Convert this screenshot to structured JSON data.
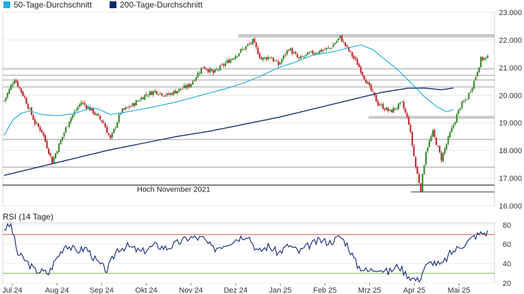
{
  "chart_data": [
    {
      "type": "candlestick",
      "legend": [
        {
          "name": "50-Tage-Durchschnitt",
          "color": "#22aee6"
        },
        {
          "name": "200-Tage-Durchschnitt",
          "color": "#102a6b"
        }
      ],
      "legend_placement": "top-left",
      "x_ticks": [
        "Jul 24",
        "Aug 24",
        "Sep 24",
        "Okt 24",
        "Nov 24",
        "Dez 24",
        "Jan 25",
        "Feb 25",
        "Mrz 25",
        "Apr 25",
        "Mai 25"
      ],
      "ylim": [
        16.0,
        23.0
      ],
      "y_ticks": [
        "16.000",
        "17.000",
        "18.000",
        "19.000",
        "20.000",
        "21.000",
        "22.000",
        "23.000"
      ],
      "y_tick_values": [
        16000,
        17000,
        18000,
        19000,
        20000,
        21000,
        22000,
        23000
      ],
      "grid": "horizontal",
      "up_color": "#3a8a2e",
      "down_color": "#c0282e",
      "annotation": {
        "text": "Hoch November 2021",
        "value": 16750
      },
      "support_lines": [
        22150,
        20950,
        20720,
        20550,
        20300,
        19200,
        18400,
        17400,
        16750
      ],
      "ma50": [
        [
          0,
          18550
        ],
        [
          5,
          19100
        ],
        [
          10,
          19350
        ],
        [
          15,
          19430
        ],
        [
          22,
          19300
        ],
        [
          32,
          19260
        ],
        [
          42,
          19350
        ],
        [
          50,
          19550
        ],
        [
          55,
          19500
        ],
        [
          62,
          19300
        ],
        [
          72,
          19400
        ],
        [
          85,
          19550
        ],
        [
          100,
          19750
        ],
        [
          115,
          20000
        ],
        [
          130,
          20250
        ],
        [
          140,
          20450
        ],
        [
          150,
          20700
        ],
        [
          160,
          21000
        ],
        [
          170,
          21200
        ],
        [
          180,
          21450
        ],
        [
          190,
          21550
        ],
        [
          200,
          21700
        ],
        [
          208,
          21820
        ],
        [
          215,
          21650
        ],
        [
          222,
          21300
        ],
        [
          230,
          20900
        ],
        [
          238,
          20400
        ],
        [
          245,
          19950
        ],
        [
          252,
          19600
        ],
        [
          258,
          19400
        ],
        [
          262,
          19480
        ]
      ],
      "ma200": [
        [
          0,
          17100
        ],
        [
          20,
          17400
        ],
        [
          40,
          17700
        ],
        [
          60,
          18000
        ],
        [
          80,
          18250
        ],
        [
          100,
          18500
        ],
        [
          120,
          18700
        ],
        [
          140,
          18950
        ],
        [
          160,
          19200
        ],
        [
          180,
          19500
        ],
        [
          200,
          19800
        ],
        [
          220,
          20100
        ],
        [
          235,
          20250
        ],
        [
          245,
          20260
        ],
        [
          255,
          20200
        ],
        [
          262,
          20260
        ]
      ],
      "price_knots": [
        [
          0,
          19800
        ],
        [
          6,
          20600
        ],
        [
          12,
          19900
        ],
        [
          18,
          19000
        ],
        [
          22,
          18700
        ],
        [
          28,
          17600
        ],
        [
          34,
          18500
        ],
        [
          38,
          19100
        ],
        [
          45,
          19750
        ],
        [
          52,
          19400
        ],
        [
          58,
          19000
        ],
        [
          62,
          18400
        ],
        [
          68,
          19400
        ],
        [
          75,
          19650
        ],
        [
          82,
          20000
        ],
        [
          88,
          20150
        ],
        [
          95,
          20000
        ],
        [
          102,
          20200
        ],
        [
          108,
          20350
        ],
        [
          116,
          21050
        ],
        [
          122,
          20800
        ],
        [
          130,
          21200
        ],
        [
          136,
          21500
        ],
        [
          140,
          21700
        ],
        [
          145,
          21950
        ],
        [
          150,
          21300
        ],
        [
          155,
          21400
        ],
        [
          160,
          21100
        ],
        [
          166,
          21700
        ],
        [
          172,
          21300
        ],
        [
          178,
          21500
        ],
        [
          184,
          21600
        ],
        [
          190,
          21700
        ],
        [
          196,
          22100
        ],
        [
          200,
          21700
        ],
        [
          206,
          21150
        ],
        [
          212,
          20400
        ],
        [
          218,
          19700
        ],
        [
          225,
          19400
        ],
        [
          232,
          19700
        ],
        [
          236,
          19000
        ],
        [
          240,
          17400
        ],
        [
          243,
          16600
        ],
        [
          246,
          18000
        ],
        [
          250,
          18650
        ],
        [
          255,
          17700
        ],
        [
          260,
          18600
        ],
        [
          266,
          19600
        ],
        [
          270,
          19900
        ],
        [
          274,
          20500
        ],
        [
          278,
          21300
        ],
        [
          282,
          21350
        ]
      ],
      "candle_count": 283,
      "rsi": {
        "title": "RSI (14 Tage)",
        "ylim": [
          20,
          82
        ],
        "y_ticks": [
          "20",
          "40",
          "60",
          "80"
        ],
        "y_tick_values": [
          20,
          40,
          60,
          80
        ],
        "overbought": 70,
        "oversold": 30,
        "overbought_color": "#e04a4a",
        "oversold_color": "#6fb84a",
        "knots": [
          [
            0,
            76
          ],
          [
            4,
            80
          ],
          [
            8,
            50
          ],
          [
            12,
            44
          ],
          [
            18,
            33
          ],
          [
            22,
            32
          ],
          [
            26,
            30
          ],
          [
            30,
            44
          ],
          [
            36,
            60
          ],
          [
            42,
            53
          ],
          [
            48,
            56
          ],
          [
            54,
            42
          ],
          [
            60,
            33
          ],
          [
            66,
            55
          ],
          [
            72,
            58
          ],
          [
            80,
            52
          ],
          [
            88,
            59
          ],
          [
            95,
            56
          ],
          [
            102,
            62
          ],
          [
            108,
            67
          ],
          [
            116,
            66
          ],
          [
            122,
            55
          ],
          [
            130,
            61
          ],
          [
            136,
            66
          ],
          [
            142,
            70
          ],
          [
            148,
            52
          ],
          [
            154,
            58
          ],
          [
            160,
            51
          ],
          [
            166,
            59
          ],
          [
            172,
            52
          ],
          [
            178,
            59
          ],
          [
            184,
            64
          ],
          [
            190,
            62
          ],
          [
            196,
            68
          ],
          [
            200,
            60
          ],
          [
            206,
            38
          ],
          [
            212,
            32
          ],
          [
            218,
            36
          ],
          [
            224,
            31
          ],
          [
            230,
            38
          ],
          [
            234,
            30
          ],
          [
            238,
            25
          ],
          [
            242,
            22
          ],
          [
            245,
            36
          ],
          [
            250,
            42
          ],
          [
            255,
            38
          ],
          [
            260,
            50
          ],
          [
            266,
            58
          ],
          [
            270,
            62
          ],
          [
            274,
            68
          ],
          [
            278,
            71
          ],
          [
            282,
            72
          ]
        ]
      }
    }
  ]
}
